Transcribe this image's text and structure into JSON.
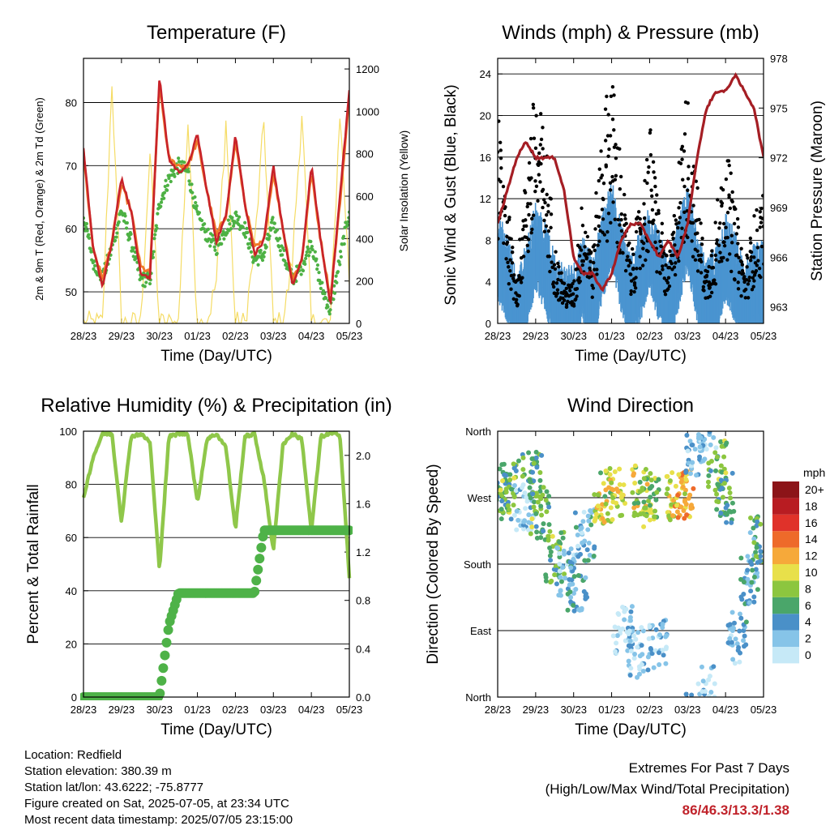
{
  "x_ticks": [
    "28/23",
    "29/23",
    "30/23",
    "01/23",
    "02/23",
    "03/23",
    "04/23",
    "05/23"
  ],
  "panels": {
    "temperature": {
      "title": "Temperature (F)",
      "xlabel": "Time (Day/UTC)",
      "ylabel_left": "2m & 9m T (Red, Orange) & 2m Td (Green)",
      "ylabel_right": "Solar Insolation (Yellow)",
      "left_ticks": [
        "50",
        "60",
        "70",
        "80"
      ],
      "right_ticks": [
        "0",
        "200",
        "400",
        "600",
        "800",
        "1000",
        "1200"
      ]
    },
    "winds": {
      "title": "Winds (mph) & Pressure (mb)",
      "xlabel": "Time (Day/UTC)",
      "ylabel_left": "Sonic Wind & Gust (Blue, Black)",
      "ylabel_right": "Station Pressure (Maroon)",
      "left_ticks": [
        "0",
        "4",
        "8",
        "12",
        "16",
        "20",
        "24"
      ],
      "right_ticks": [
        "963",
        "966",
        "969",
        "972",
        "975",
        "978"
      ]
    },
    "humidity": {
      "title": "Relative Humidity (%) & Precipitation (in)",
      "xlabel": "Time (Day/UTC)",
      "ylabel_left": "Percent & Total Rainfall",
      "left_ticks": [
        "0",
        "20",
        "40",
        "60",
        "80",
        "100"
      ],
      "right_ticks": [
        "0.0",
        "0.4",
        "0.8",
        "1.2",
        "1.6",
        "2.0"
      ]
    },
    "direction": {
      "title": "Wind Direction",
      "xlabel": "Time (Day/UTC)",
      "ylabel_left": "Direction (Colored By Speed)",
      "left_ticks": [
        "North",
        "East",
        "South",
        "West",
        "North"
      ],
      "colorbar_title": "mph",
      "colorbar_labels": [
        "0",
        "2",
        "4",
        "6",
        "8",
        "10",
        "12",
        "14",
        "16",
        "18",
        "20+"
      ],
      "colorbar_colors": [
        "#c6e9f7",
        "#86c4e8",
        "#4a90c8",
        "#4aa66a",
        "#8cc63f",
        "#e8e04a",
        "#f6a93a",
        "#ee6a2a",
        "#e0322a",
        "#b81c22",
        "#8c1418"
      ]
    }
  },
  "station_info": {
    "location": "Location: Redfield",
    "elevation": "Station elevation: 380.39 m",
    "latlon": "Station lat/lon: 43.6222; -75.8777",
    "created": "Figure created on Sat, 2025-07-05, at 23:34 UTC",
    "recent": "Most recent data timestamp: 2025/07/05 23:15:00"
  },
  "extremes": {
    "title": "Extremes For Past 7 Days",
    "subtitle": "(High/Low/Max Wind/Total Precipitation)",
    "values": "86/46.3/13.3/1.38"
  },
  "chart_data": [
    {
      "type": "line",
      "name": "temperature",
      "x_days": [
        0,
        0.25,
        0.5,
        0.75,
        1,
        1.25,
        1.5,
        1.75,
        2,
        2.25,
        2.5,
        2.75,
        3,
        3.25,
        3.5,
        3.75,
        4,
        4.25,
        4.5,
        4.75,
        5,
        5.25,
        5.5,
        5.75,
        6,
        6.25,
        6.5,
        6.75,
        7
      ],
      "ylim_left": [
        45,
        87
      ],
      "ylim_right": [
        0,
        1250
      ],
      "series": [
        {
          "name": "2m T",
          "values": [
            73,
            57,
            51,
            58,
            68,
            63,
            53,
            52,
            84,
            71,
            69,
            70,
            75,
            66,
            58,
            62,
            75,
            64,
            56,
            58,
            70,
            60,
            51,
            55,
            70,
            58,
            48,
            65,
            82
          ]
        },
        {
          "name": "9m T",
          "values": [
            72,
            57,
            52,
            58,
            67,
            63,
            54,
            53,
            83,
            71,
            70,
            70,
            74,
            66,
            59,
            62,
            74,
            64,
            57,
            58,
            69,
            60,
            52,
            55,
            69,
            58,
            49,
            64,
            81
          ]
        },
        {
          "name": "2m Td",
          "values": [
            62,
            55,
            52,
            57,
            63,
            58,
            52,
            52,
            64,
            68,
            70,
            69,
            62,
            59,
            57,
            60,
            62,
            60,
            55,
            56,
            61,
            56,
            52,
            54,
            58,
            51,
            47,
            55,
            63
          ]
        },
        {
          "name": "Solar Insolation",
          "values": [
            0,
            0,
            0,
            1150,
            0,
            0,
            0,
            800,
            0,
            0,
            0,
            950,
            0,
            0,
            200,
            950,
            0,
            0,
            350,
            950,
            0,
            0,
            300,
            1000,
            0,
            0,
            0,
            1000,
            200
          ]
        }
      ]
    },
    {
      "type": "scatter",
      "name": "winds_pressure",
      "x_days": [
        0,
        0.25,
        0.5,
        0.75,
        1,
        1.25,
        1.5,
        1.75,
        2,
        2.25,
        2.5,
        2.75,
        3,
        3.25,
        3.5,
        3.75,
        4,
        4.25,
        4.5,
        4.75,
        5,
        5.25,
        5.5,
        5.75,
        6,
        6.25,
        6.5,
        6.75,
        7
      ],
      "ylim_left": [
        0,
        25.5
      ],
      "ylim_right": [
        962,
        978
      ],
      "series": [
        {
          "name": "Sonic Wind",
          "values": [
            7,
            5,
            1,
            4,
            8,
            6,
            3,
            2,
            2,
            5,
            2,
            7,
            10,
            6,
            3,
            5,
            8,
            5,
            2,
            6,
            10,
            5,
            2,
            4,
            7,
            5,
            2,
            4,
            4
          ]
        },
        {
          "name": "Gust",
          "values": [
            16,
            10,
            3,
            12,
            18,
            14,
            6,
            3,
            3,
            10,
            5,
            16,
            19,
            12,
            5,
            9,
            15,
            9,
            4,
            12,
            18,
            10,
            4,
            8,
            14,
            9,
            4,
            8,
            10
          ]
        },
        {
          "name": "Station Pressure",
          "values": [
            968,
            970,
            972,
            973,
            972,
            972,
            972,
            970,
            966,
            965,
            965,
            964,
            965,
            967,
            968,
            968,
            967,
            966,
            967,
            966,
            968,
            972,
            975,
            976,
            976,
            977,
            976,
            975,
            972
          ]
        }
      ]
    },
    {
      "type": "line",
      "name": "humidity_precip",
      "x_days": [
        0,
        0.25,
        0.5,
        0.75,
        1,
        1.25,
        1.5,
        1.75,
        2,
        2.25,
        2.5,
        2.75,
        3,
        3.25,
        3.5,
        3.75,
        4,
        4.25,
        4.5,
        4.75,
        5,
        5.25,
        5.5,
        5.75,
        6,
        6.25,
        6.5,
        6.75,
        7
      ],
      "ylim_left": [
        0,
        100
      ],
      "ylim_right": [
        0,
        2.2
      ],
      "series": [
        {
          "name": "Relative Humidity",
          "values": [
            75,
            90,
            99,
            99,
            66,
            98,
            99,
            96,
            48,
            98,
            99,
            99,
            73,
            97,
            99,
            94,
            63,
            98,
            99,
            82,
            55,
            95,
            99,
            97,
            62,
            98,
            99,
            99,
            45
          ]
        },
        {
          "name": "Total Precipitation",
          "values": [
            0,
            0,
            0,
            0,
            0,
            0,
            0,
            0,
            0,
            0.6,
            0.86,
            0.86,
            0.86,
            0.86,
            0.86,
            0.86,
            0.86,
            0.86,
            0.86,
            1.38,
            1.38,
            1.38,
            1.38,
            1.38,
            1.38,
            1.38,
            1.38,
            1.38,
            1.38
          ]
        }
      ]
    },
    {
      "type": "scatter",
      "name": "wind_direction",
      "x_days": [
        0.1,
        0.3,
        0.7,
        0.9,
        1.1,
        1.5,
        1.8,
        2.1,
        2.3,
        2.8,
        3.1,
        3.3,
        3.6,
        3.8,
        4.0,
        4.2,
        4.7,
        4.9,
        5.2,
        5.5,
        5.8,
        6.0,
        6.3,
        6.6,
        6.9
      ],
      "direction_deg": [
        270,
        285,
        260,
        300,
        250,
        190,
        170,
        150,
        220,
        270,
        275,
        90,
        60,
        280,
        265,
        70,
        270,
        275,
        330,
        10,
        315,
        270,
        80,
        160,
        210
      ],
      "speed_mph": [
        6,
        7,
        1,
        6,
        7,
        7,
        2,
        4,
        3,
        9,
        10,
        1,
        1,
        9,
        8,
        2,
        10,
        12,
        3,
        2,
        7,
        6,
        3,
        4,
        5
      ],
      "ylim_labels": [
        "North",
        "East",
        "South",
        "West",
        "North"
      ]
    }
  ]
}
